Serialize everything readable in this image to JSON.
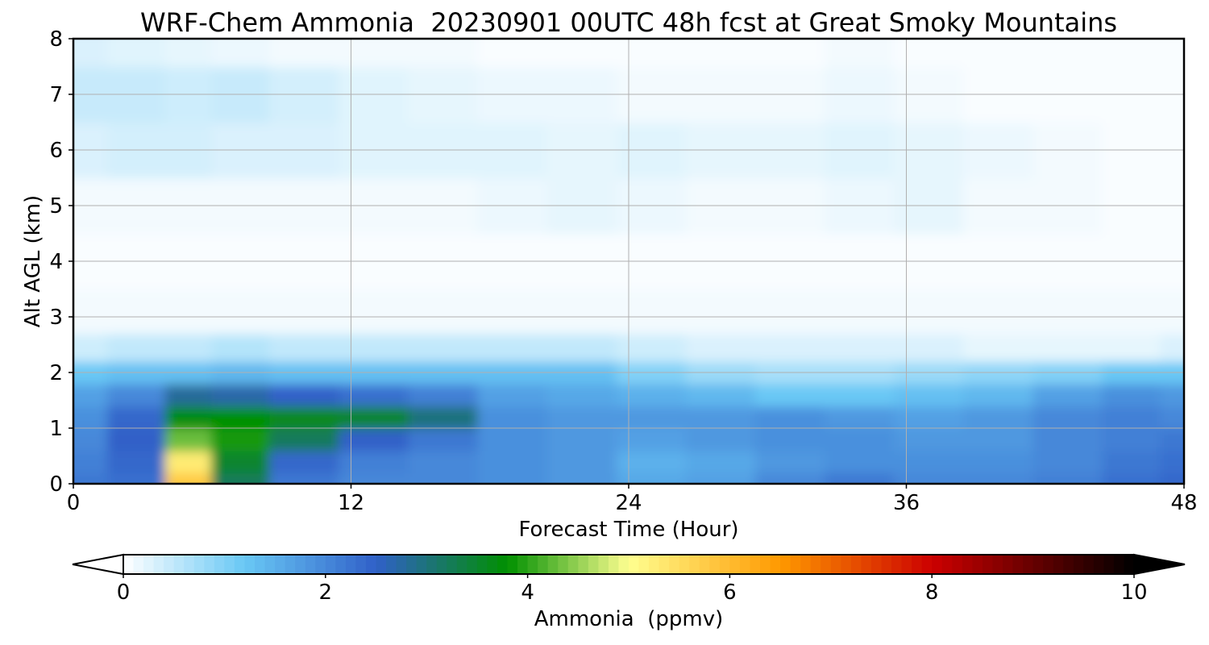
{
  "chart_data": {
    "type": "heatmap",
    "title": "WRF-Chem Ammonia  20230901 00UTC 48h fcst at Great Smoky Mountains",
    "xlabel": "Forecast Time (Hour)",
    "ylabel": "Alt AGL (km)",
    "xlim": [
      0,
      48
    ],
    "ylim": [
      0,
      8
    ],
    "x_ticks": [
      "0",
      "12",
      "24",
      "36",
      "48"
    ],
    "y_ticks": [
      "0",
      "1",
      "2",
      "3",
      "4",
      "5",
      "6",
      "7",
      "8"
    ],
    "grid": true,
    "x_values": [
      0,
      3,
      5,
      7,
      10,
      13,
      16,
      19,
      22,
      25,
      28,
      31,
      34,
      37,
      40,
      43,
      46,
      48
    ],
    "y_values": [
      0,
      0.4,
      0.8,
      1.2,
      1.6,
      2.0,
      2.4,
      3.0,
      4.0,
      5.0,
      6.0,
      7.0,
      8.0
    ],
    "z_values": [
      [
        2.2,
        2.3,
        5.8,
        3.2,
        2.2,
        2.0,
        2.0,
        1.9,
        1.8,
        1.6,
        1.7,
        2.0,
        2.2,
        2.0,
        2.0,
        2.1,
        2.3,
        2.4
      ],
      [
        2.1,
        2.4,
        5.3,
        3.5,
        2.4,
        2.1,
        2.0,
        1.9,
        1.8,
        1.5,
        1.6,
        1.8,
        1.9,
        1.9,
        1.9,
        2.0,
        2.2,
        2.3
      ],
      [
        2.0,
        2.5,
        4.3,
        3.9,
        3.2,
        2.5,
        2.2,
        1.9,
        1.8,
        1.7,
        1.8,
        1.9,
        1.9,
        1.8,
        1.8,
        2.0,
        2.1,
        2.2
      ],
      [
        1.9,
        2.4,
        3.7,
        3.8,
        3.6,
        3.5,
        3.0,
        1.9,
        1.8,
        1.8,
        1.8,
        1.9,
        1.8,
        1.7,
        1.8,
        2.0,
        2.1,
        2.0
      ],
      [
        1.7,
        2.0,
        2.8,
        2.7,
        2.5,
        2.3,
        2.1,
        1.7,
        1.6,
        1.5,
        1.4,
        1.2,
        1.2,
        1.3,
        1.4,
        1.7,
        1.9,
        1.8
      ],
      [
        1.2,
        1.3,
        1.3,
        1.4,
        1.3,
        1.3,
        1.3,
        1.3,
        1.3,
        1.0,
        0.8,
        0.7,
        0.7,
        0.8,
        0.9,
        1.0,
        1.2,
        1.2
      ],
      [
        0.4,
        0.5,
        0.5,
        0.6,
        0.5,
        0.5,
        0.5,
        0.5,
        0.5,
        0.4,
        0.3,
        0.3,
        0.3,
        0.3,
        0.2,
        0.2,
        0.2,
        0.3
      ],
      [
        0.1,
        0.1,
        0.1,
        0.1,
        0.1,
        0.1,
        0.1,
        0.1,
        0.1,
        0.1,
        0.1,
        0.1,
        0.1,
        0.1,
        0.1,
        0.1,
        0.1,
        0.1
      ],
      [
        0.05,
        0.05,
        0.05,
        0.05,
        0.05,
        0.05,
        0.05,
        0.05,
        0.05,
        0.05,
        0.05,
        0.05,
        0.05,
        0.05,
        0.05,
        0.05,
        0.05,
        0.05
      ],
      [
        0.1,
        0.1,
        0.1,
        0.1,
        0.1,
        0.1,
        0.1,
        0.15,
        0.2,
        0.15,
        0.1,
        0.1,
        0.15,
        0.2,
        0.1,
        0.1,
        0.05,
        0.05
      ],
      [
        0.3,
        0.35,
        0.35,
        0.3,
        0.3,
        0.25,
        0.25,
        0.25,
        0.2,
        0.25,
        0.2,
        0.2,
        0.25,
        0.2,
        0.15,
        0.1,
        0.05,
        0.05
      ],
      [
        0.45,
        0.45,
        0.4,
        0.45,
        0.35,
        0.25,
        0.2,
        0.15,
        0.15,
        0.1,
        0.1,
        0.1,
        0.15,
        0.1,
        0.05,
        0.05,
        0.05,
        0.05
      ],
      [
        0.3,
        0.25,
        0.2,
        0.15,
        0.1,
        0.1,
        0.1,
        0.05,
        0.05,
        0.05,
        0.05,
        0.05,
        0.1,
        0.05,
        0.05,
        0.05,
        0.05,
        0.05
      ]
    ],
    "colorbar": {
      "label": "Ammonia  (ppmv)",
      "ticks": [
        "0",
        "2",
        "4",
        "6",
        "8",
        "10"
      ],
      "range": [
        0,
        10
      ],
      "extend": "both",
      "colors": [
        "#ffffff",
        "#69c8f5",
        "#3060c8",
        "#009000",
        "#ffff90",
        "#ff9900",
        "#cc0000",
        "#000000"
      ]
    }
  }
}
